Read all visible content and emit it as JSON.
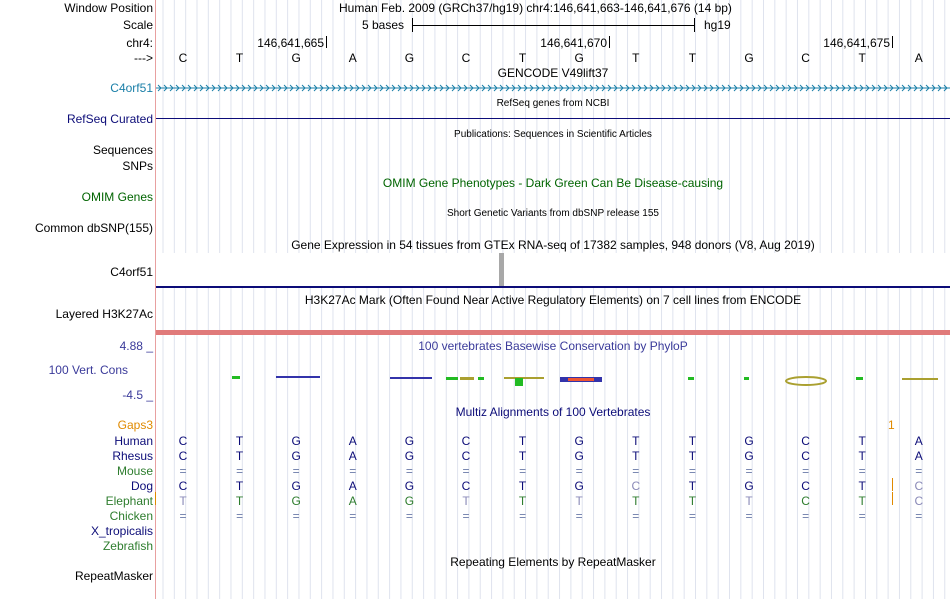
{
  "header": {
    "window_position_label": "Window Position",
    "window_position_value": "Human Feb. 2009 (GRCh37/hg19)   chr4:146,641,663-146,641,676 (14 bp)",
    "scale_label": "Scale",
    "scale_left": "5 bases",
    "scale_right": "hg19",
    "chr_label": "chr4:",
    "strand_label": "--->",
    "positions": [
      "146,641,665",
      "146,641,670",
      "146,641,675"
    ],
    "bases": [
      "C",
      "T",
      "G",
      "A",
      "G",
      "C",
      "T",
      "G",
      "T",
      "T",
      "G",
      "C",
      "T",
      "A"
    ]
  },
  "tracks": {
    "gencode": {
      "title": "GENCODE V49lift37",
      "label": "C4orf51",
      "color": "#1a7fa8"
    },
    "refseq": {
      "title": "RefSeq genes from NCBI",
      "label": "RefSeq Curated",
      "color": "#0c0c78"
    },
    "publications": {
      "title": "Publications: Sequences in Scientific Articles",
      "label1": "Sequences",
      "label2": "SNPs"
    },
    "omim": {
      "title": "OMIM Gene Phenotypes - Dark Green Can Be Disease-causing",
      "label": "OMIM Genes",
      "color": "#006400"
    },
    "dbsnp": {
      "title": "Short Genetic Variants from dbSNP release 155",
      "label": "Common dbSNP(155)"
    },
    "gtex": {
      "title": "Gene Expression in 54 tissues from GTEx RNA-seq of 17382 samples, 948 donors (V8, Aug 2019)",
      "label": "C4orf51"
    },
    "h3k27ac": {
      "title": "H3K27Ac Mark (Often Found Near Active Regulatory Elements) on 7 cell lines from ENCODE",
      "label": "Layered H3K27Ac"
    },
    "cons": {
      "title": "100 vertebrates Basewise Conservation by PhyloP",
      "label": "100 Vert. Cons",
      "max": "4.88 _",
      "min": "-4.5 _",
      "color": "#3a3a9a"
    },
    "multiz": {
      "title": "Multiz Alignments of 100 Vertebrates",
      "gaps_label": "Gaps3",
      "gap_mark": "1",
      "gaps_color": "#e08a00",
      "color": "#0c0c78"
    },
    "repeatmasker": {
      "title": "Repeating Elements by RepeatMasker",
      "label": "RepeatMasker"
    }
  },
  "alignment": [
    {
      "species": "Human",
      "color": "#0c0c78",
      "bases": [
        "C",
        "T",
        "G",
        "A",
        "G",
        "C",
        "T",
        "G",
        "T",
        "T",
        "G",
        "C",
        "T",
        "A"
      ]
    },
    {
      "species": "Rhesus",
      "color": "#0c0c78",
      "bases": [
        "C",
        "T",
        "G",
        "A",
        "G",
        "C",
        "T",
        "G",
        "T",
        "T",
        "G",
        "C",
        "T",
        "A"
      ]
    },
    {
      "species": "Mouse",
      "color": "#2e7d2e",
      "bases": [
        "=",
        "=",
        "=",
        "=",
        "=",
        "=",
        "=",
        "=",
        "=",
        "=",
        "=",
        "=",
        "=",
        "="
      ]
    },
    {
      "species": "Dog",
      "color": "#0c0c78",
      "bases": [
        "C",
        "T",
        "G",
        "A",
        "G",
        "C",
        "T",
        "G",
        "C",
        "T",
        "G",
        "C",
        "T",
        "C"
      ]
    },
    {
      "species": "Elephant",
      "color": "#2e7d2e",
      "bases": [
        "T",
        "T",
        "G",
        "A",
        "G",
        "T",
        "T",
        "T",
        "T",
        "T",
        "T",
        "C",
        "T",
        "C"
      ]
    },
    {
      "species": "Chicken",
      "color": "#2e7d2e",
      "bases": [
        "=",
        "=",
        "=",
        "=",
        "=",
        "=",
        "=",
        "=",
        "=",
        "=",
        "=",
        "=",
        "=",
        "="
      ]
    },
    {
      "species": "X_tropicalis",
      "color": "#0c0c78",
      "bases": []
    },
    {
      "species": "Zebrafish",
      "color": "#2e7d2e",
      "bases": []
    }
  ]
}
